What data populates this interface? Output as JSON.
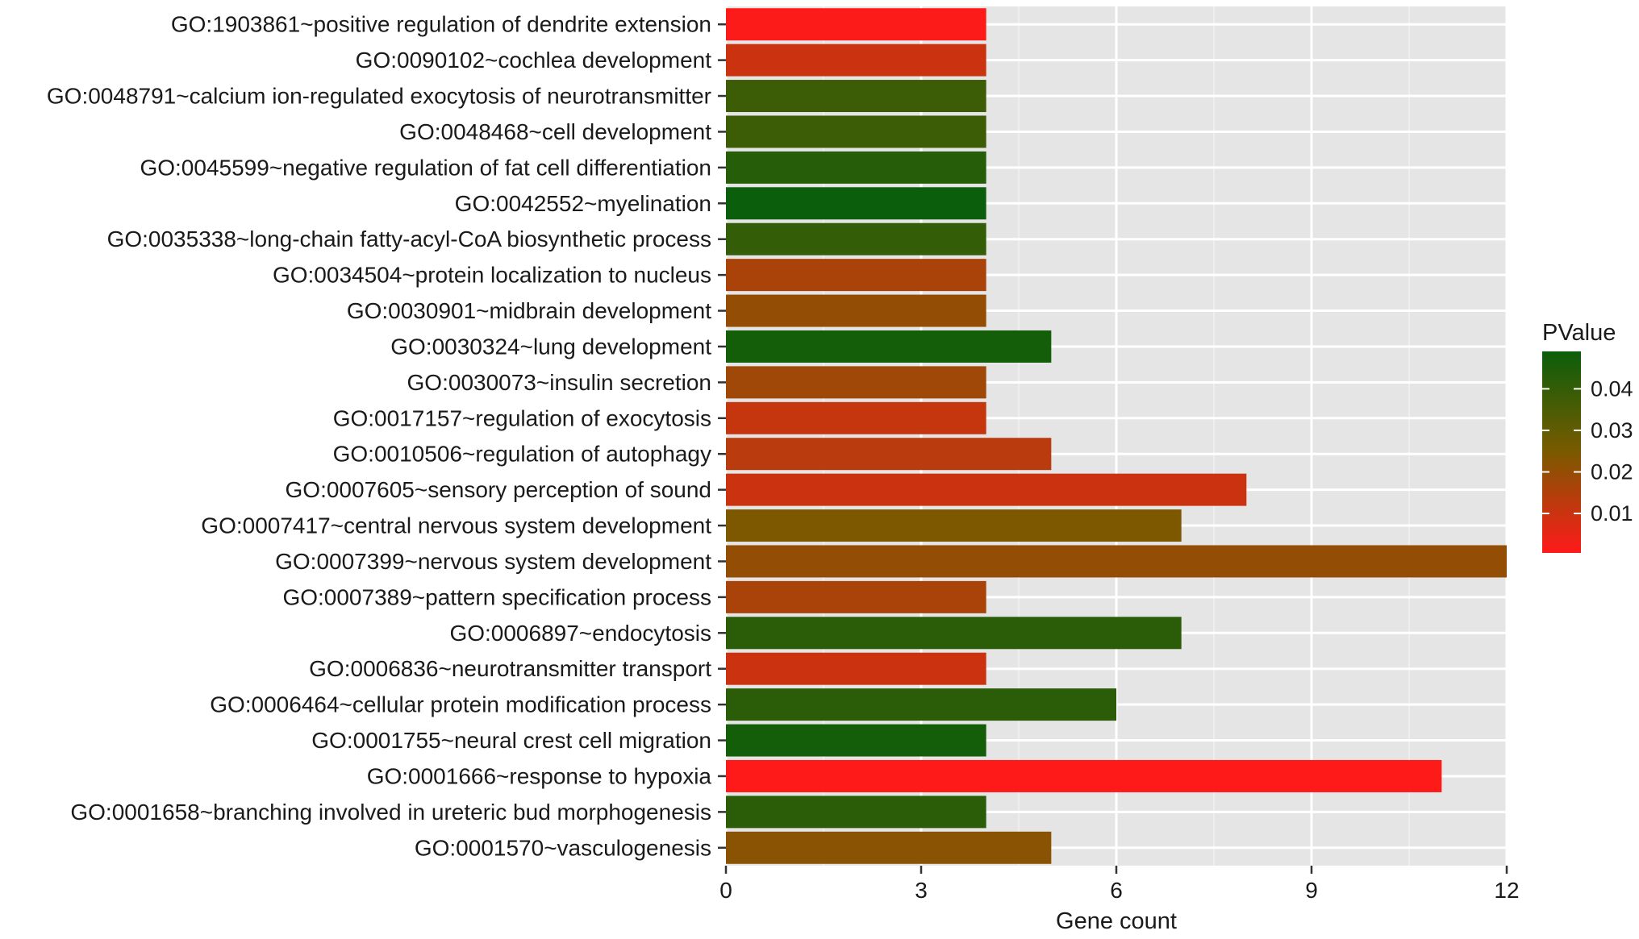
{
  "chart_data": {
    "type": "bar",
    "orientation": "horizontal",
    "title": "",
    "xlabel": "Gene count",
    "ylabel": "",
    "xlim": [
      0,
      12
    ],
    "xticks": [
      0,
      3,
      6,
      9,
      12
    ],
    "grid": true,
    "legend_position": "right",
    "categories": [
      "GO:1903861~positive regulation of dendrite extension",
      "GO:0090102~cochlea development",
      "GO:0048791~calcium ion-regulated exocytosis of neurotransmitter",
      "GO:0048468~cell development",
      "GO:0045599~negative regulation of fat cell differentiation",
      "GO:0042552~myelination",
      "GO:0035338~long-chain fatty-acyl-CoA biosynthetic process",
      "GO:0034504~protein localization to nucleus",
      "GO:0030901~midbrain development",
      "GO:0030324~lung development",
      "GO:0030073~insulin secretion",
      "GO:0017157~regulation of exocytosis",
      "GO:0010506~regulation of autophagy",
      "GO:0007605~sensory perception of sound",
      "GO:0007417~central nervous system development",
      "GO:0007399~nervous system development",
      "GO:0007389~pattern specification process",
      "GO:0006897~endocytosis",
      "GO:0006836~neurotransmitter transport",
      "GO:0006464~cellular protein modification process",
      "GO:0001755~neural crest cell migration",
      "GO:0001666~response to hypoxia",
      "GO:0001658~branching involved in ureteric bud morphogenesis",
      "GO:0001570~vasculogenesis"
    ],
    "values": [
      4,
      4,
      4,
      4,
      4,
      4,
      4,
      4,
      4,
      5,
      4,
      4,
      5,
      8,
      7,
      12,
      4,
      7,
      4,
      6,
      4,
      11,
      4,
      5
    ],
    "pvalues": [
      0.001,
      0.01,
      0.038,
      0.038,
      0.043,
      0.049,
      0.04,
      0.016,
      0.02,
      0.047,
      0.018,
      0.011,
      0.013,
      0.01,
      0.024,
      0.02,
      0.016,
      0.042,
      0.01,
      0.042,
      0.047,
      0.0005,
      0.042,
      0.022
    ],
    "colorbar": {
      "title": "PValue",
      "ticks": [
        0.01,
        0.02,
        0.03,
        0.04
      ],
      "range": [
        0.0005,
        0.049
      ],
      "low_color": "#ff1a1a",
      "mid_color": "#7a5a00",
      "high_color": "#0b5e0b"
    },
    "colors": {
      "panel_bg": "#e5e5e5",
      "grid_major": "#ffffff",
      "grid_minor": "#f2f2f2",
      "axis_text": "#1a1a1a"
    }
  }
}
